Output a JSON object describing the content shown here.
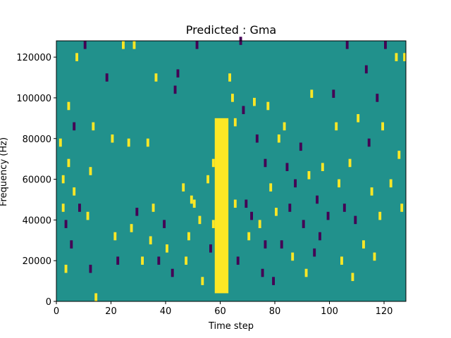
{
  "chart_data": {
    "type": "heatmap",
    "title": "Predicted : Gma",
    "xlabel": "Time step",
    "ylabel": "Frequency (Hz)",
    "xlim": [
      0,
      128
    ],
    "ylim": [
      0,
      128000
    ],
    "xticks": [
      0,
      20,
      40,
      60,
      80,
      100,
      120
    ],
    "yticks": [
      0,
      20000,
      40000,
      60000,
      80000,
      100000,
      120000
    ],
    "grid": false,
    "levels": [
      -1,
      0,
      1
    ],
    "colors": {
      "neg": "#440154",
      "zero": "#21918c",
      "pos": "#fde725"
    },
    "background_value": 0,
    "dominant_band": {
      "x_range": [
        58,
        63
      ],
      "y_range": [
        4000,
        90000
      ],
      "value": 1
    },
    "marked_cells": [
      {
        "x": 1,
        "y": 76000,
        "v": 1
      },
      {
        "x": 2,
        "y": 58000,
        "v": 1
      },
      {
        "x": 2,
        "y": 44000,
        "v": 1
      },
      {
        "x": 3,
        "y": 36000,
        "v": -1
      },
      {
        "x": 3,
        "y": 14000,
        "v": 1
      },
      {
        "x": 4,
        "y": 94000,
        "v": 1
      },
      {
        "x": 4,
        "y": 66000,
        "v": 1
      },
      {
        "x": 5,
        "y": 26000,
        "v": -1
      },
      {
        "x": 6,
        "y": 84000,
        "v": -1
      },
      {
        "x": 6,
        "y": 52000,
        "v": 1
      },
      {
        "x": 7,
        "y": 118000,
        "v": 1
      },
      {
        "x": 8,
        "y": 44000,
        "v": -1
      },
      {
        "x": 10,
        "y": 124000,
        "v": -1
      },
      {
        "x": 11,
        "y": 40000,
        "v": 1
      },
      {
        "x": 12,
        "y": 62000,
        "v": 1
      },
      {
        "x": 12,
        "y": 14000,
        "v": -1
      },
      {
        "x": 13,
        "y": 84000,
        "v": 1
      },
      {
        "x": 14,
        "y": 0,
        "v": 1
      },
      {
        "x": 18,
        "y": 108000,
        "v": -1
      },
      {
        "x": 20,
        "y": 78000,
        "v": 1
      },
      {
        "x": 21,
        "y": 30000,
        "v": 1
      },
      {
        "x": 22,
        "y": 18000,
        "v": -1
      },
      {
        "x": 24,
        "y": 124000,
        "v": 1
      },
      {
        "x": 26,
        "y": 76000,
        "v": 1
      },
      {
        "x": 27,
        "y": 34000,
        "v": 1
      },
      {
        "x": 28,
        "y": 124000,
        "v": 1
      },
      {
        "x": 29,
        "y": 42000,
        "v": -1
      },
      {
        "x": 31,
        "y": 18000,
        "v": 1
      },
      {
        "x": 33,
        "y": 76000,
        "v": 1
      },
      {
        "x": 34,
        "y": 28000,
        "v": 1
      },
      {
        "x": 35,
        "y": 44000,
        "v": 1
      },
      {
        "x": 36,
        "y": 108000,
        "v": 1
      },
      {
        "x": 37,
        "y": 18000,
        "v": -1
      },
      {
        "x": 39,
        "y": 36000,
        "v": -1
      },
      {
        "x": 40,
        "y": 24000,
        "v": 1
      },
      {
        "x": 42,
        "y": 12000,
        "v": -1
      },
      {
        "x": 43,
        "y": 102000,
        "v": -1
      },
      {
        "x": 44,
        "y": 110000,
        "v": -1
      },
      {
        "x": 46,
        "y": 54000,
        "v": 1
      },
      {
        "x": 47,
        "y": 18000,
        "v": 1
      },
      {
        "x": 48,
        "y": 30000,
        "v": 1
      },
      {
        "x": 49,
        "y": 48000,
        "v": 1
      },
      {
        "x": 50,
        "y": 46000,
        "v": 1
      },
      {
        "x": 51,
        "y": 124000,
        "v": -1
      },
      {
        "x": 52,
        "y": 38000,
        "v": 1
      },
      {
        "x": 53,
        "y": 8000,
        "v": 1
      },
      {
        "x": 55,
        "y": 58000,
        "v": 1
      },
      {
        "x": 56,
        "y": 24000,
        "v": -1
      },
      {
        "x": 57,
        "y": 36000,
        "v": 1
      },
      {
        "x": 57,
        "y": 66000,
        "v": 1
      },
      {
        "x": 63,
        "y": 108000,
        "v": 1
      },
      {
        "x": 64,
        "y": 98000,
        "v": 1
      },
      {
        "x": 65,
        "y": 46000,
        "v": 1
      },
      {
        "x": 65,
        "y": 86000,
        "v": 1
      },
      {
        "x": 66,
        "y": 18000,
        "v": -1
      },
      {
        "x": 67,
        "y": 126000,
        "v": -1
      },
      {
        "x": 68,
        "y": 92000,
        "v": -1
      },
      {
        "x": 69,
        "y": 46000,
        "v": -1
      },
      {
        "x": 70,
        "y": 30000,
        "v": 1
      },
      {
        "x": 71,
        "y": 40000,
        "v": -1
      },
      {
        "x": 72,
        "y": 96000,
        "v": 1
      },
      {
        "x": 73,
        "y": 78000,
        "v": -1
      },
      {
        "x": 74,
        "y": 36000,
        "v": 1
      },
      {
        "x": 75,
        "y": 12000,
        "v": -1
      },
      {
        "x": 76,
        "y": 66000,
        "v": -1
      },
      {
        "x": 76,
        "y": 26000,
        "v": -1
      },
      {
        "x": 77,
        "y": 94000,
        "v": 1
      },
      {
        "x": 78,
        "y": 54000,
        "v": 1
      },
      {
        "x": 79,
        "y": 8000,
        "v": -1
      },
      {
        "x": 80,
        "y": 42000,
        "v": 1
      },
      {
        "x": 81,
        "y": 78000,
        "v": 1
      },
      {
        "x": 82,
        "y": 26000,
        "v": -1
      },
      {
        "x": 83,
        "y": 84000,
        "v": 1
      },
      {
        "x": 84,
        "y": 64000,
        "v": -1
      },
      {
        "x": 85,
        "y": 44000,
        "v": -1
      },
      {
        "x": 86,
        "y": 20000,
        "v": 1
      },
      {
        "x": 87,
        "y": 56000,
        "v": -1
      },
      {
        "x": 89,
        "y": 74000,
        "v": -1
      },
      {
        "x": 90,
        "y": 36000,
        "v": -1
      },
      {
        "x": 91,
        "y": 12000,
        "v": 1
      },
      {
        "x": 92,
        "y": 60000,
        "v": 1
      },
      {
        "x": 93,
        "y": 100000,
        "v": 1
      },
      {
        "x": 94,
        "y": 22000,
        "v": -1
      },
      {
        "x": 95,
        "y": 48000,
        "v": -1
      },
      {
        "x": 96,
        "y": 30000,
        "v": -1
      },
      {
        "x": 97,
        "y": 64000,
        "v": 1
      },
      {
        "x": 99,
        "y": 40000,
        "v": -1
      },
      {
        "x": 101,
        "y": 100000,
        "v": -1
      },
      {
        "x": 102,
        "y": 84000,
        "v": 1
      },
      {
        "x": 103,
        "y": 56000,
        "v": 1
      },
      {
        "x": 104,
        "y": 18000,
        "v": 1
      },
      {
        "x": 105,
        "y": 44000,
        "v": -1
      },
      {
        "x": 106,
        "y": 124000,
        "v": -1
      },
      {
        "x": 107,
        "y": 66000,
        "v": 1
      },
      {
        "x": 108,
        "y": 10000,
        "v": 1
      },
      {
        "x": 109,
        "y": 38000,
        "v": -1
      },
      {
        "x": 110,
        "y": 88000,
        "v": 1
      },
      {
        "x": 112,
        "y": 26000,
        "v": 1
      },
      {
        "x": 113,
        "y": 112000,
        "v": -1
      },
      {
        "x": 114,
        "y": 76000,
        "v": -1
      },
      {
        "x": 115,
        "y": 52000,
        "v": 1
      },
      {
        "x": 116,
        "y": 20000,
        "v": 1
      },
      {
        "x": 117,
        "y": 98000,
        "v": -1
      },
      {
        "x": 118,
        "y": 40000,
        "v": 1
      },
      {
        "x": 119,
        "y": 84000,
        "v": 1
      },
      {
        "x": 120,
        "y": 124000,
        "v": -1
      },
      {
        "x": 122,
        "y": 56000,
        "v": 1
      },
      {
        "x": 124,
        "y": 118000,
        "v": 1
      },
      {
        "x": 125,
        "y": 70000,
        "v": 1
      },
      {
        "x": 126,
        "y": 44000,
        "v": 1
      },
      {
        "x": 127,
        "y": 118000,
        "v": 1
      }
    ]
  }
}
